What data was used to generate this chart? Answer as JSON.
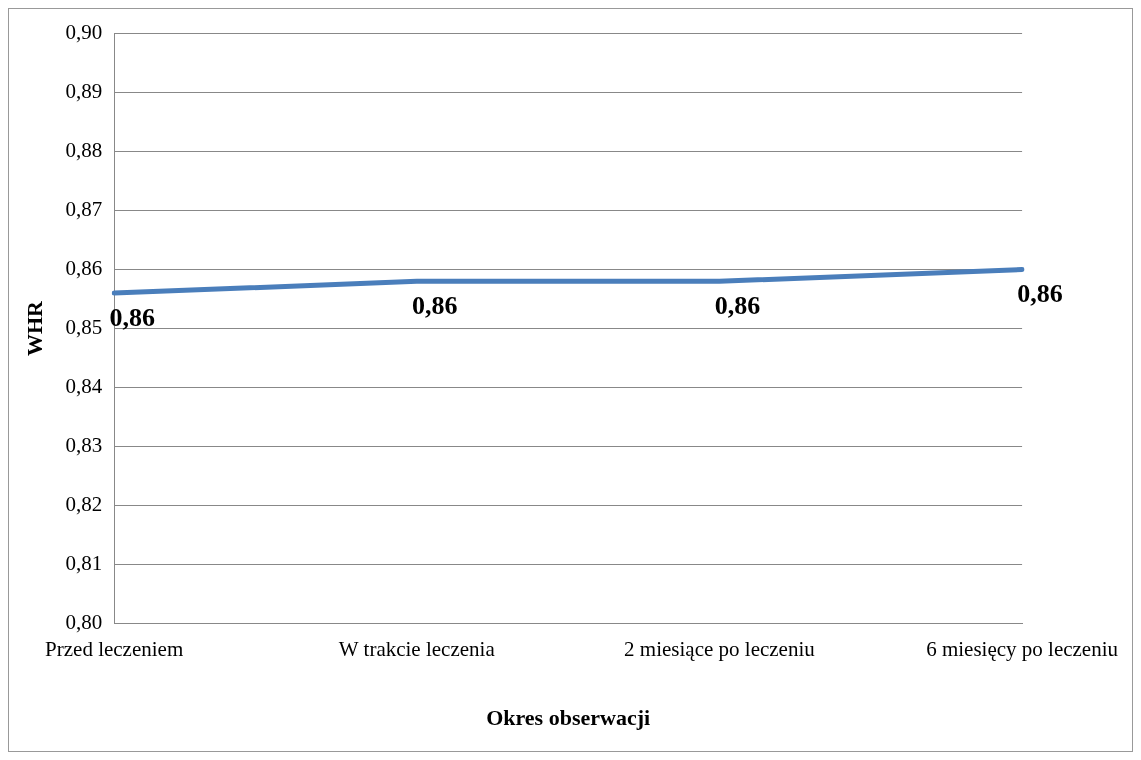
{
  "chart_data": {
    "type": "line",
    "xlabel": "Okres obserwacji",
    "ylabel": "WHR",
    "categories": [
      "Przed leczeniem",
      "W trakcie leczenia",
      "2 miesiące po leczeniu",
      "6 miesięcy po leczeniu"
    ],
    "series": [
      {
        "color": "#4a7ebb",
        "values": [
          0.856,
          0.858,
          0.858,
          0.86
        ],
        "value_labels": [
          "0,86",
          "0,86",
          "0,86",
          "0,86"
        ]
      }
    ],
    "ylim": [
      0.8,
      0.9
    ],
    "yticks": [
      {
        "value": 0.8,
        "label": "0,80"
      },
      {
        "value": 0.81,
        "label": "0,81"
      },
      {
        "value": 0.82,
        "label": "0,82"
      },
      {
        "value": 0.83,
        "label": "0,83"
      },
      {
        "value": 0.84,
        "label": "0,84"
      },
      {
        "value": 0.85,
        "label": "0,85"
      },
      {
        "value": 0.86,
        "label": "0,86"
      },
      {
        "value": 0.87,
        "label": "0,87"
      },
      {
        "value": 0.88,
        "label": "0,88"
      },
      {
        "value": 0.89,
        "label": "0,89"
      },
      {
        "value": 0.9,
        "label": "0,90"
      }
    ],
    "grid": "y",
    "legend": false,
    "marker": "none",
    "line_style": "solid"
  }
}
